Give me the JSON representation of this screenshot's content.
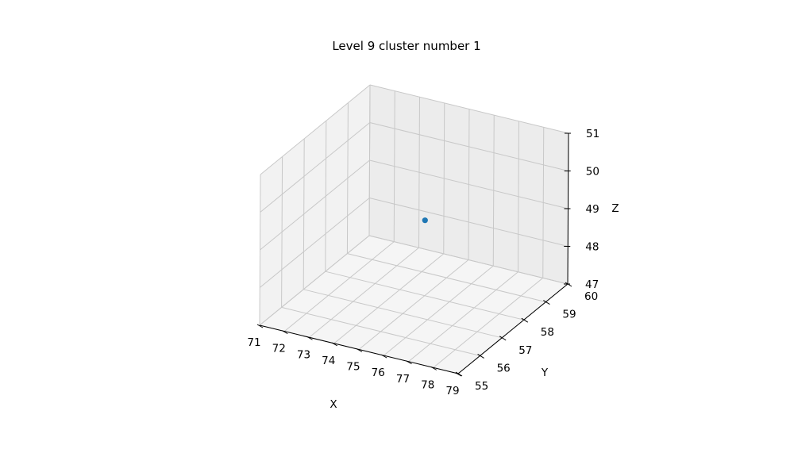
{
  "chart_data": {
    "type": "scatter",
    "projection": "3d",
    "title": "Level 9 cluster number 1",
    "xlabel": "X",
    "ylabel": "Y",
    "zlabel": "Z",
    "xlim": [
      71,
      79
    ],
    "ylim": [
      55,
      60
    ],
    "zlim": [
      47,
      51
    ],
    "x_ticks": [
      "71",
      "72",
      "73",
      "74",
      "75",
      "76",
      "77",
      "78",
      "79"
    ],
    "y_ticks": [
      "55",
      "56",
      "57",
      "58",
      "59",
      "60"
    ],
    "z_ticks": [
      "47",
      "48",
      "49",
      "50",
      "51"
    ],
    "grid": true,
    "points": [
      {
        "x": 75,
        "y": 58,
        "z": 49
      }
    ],
    "colors": {
      "point": "#1f77b4",
      "pane_left": "#f2f2f2",
      "pane_back": "#ececec",
      "pane_floor": "#f5f5f5",
      "grid": "#c8c8c8"
    }
  }
}
